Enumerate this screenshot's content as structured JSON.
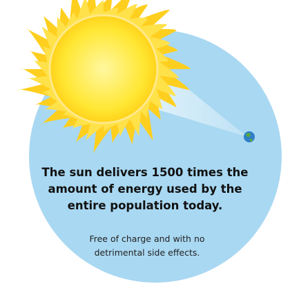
{
  "headline": {
    "lines": [
      "The sun delivers 1500 times the",
      "amount of energy used by the",
      "entire population today."
    ]
  },
  "subtext": {
    "lines": [
      "Free of charge and with no",
      "detrimental side effects."
    ]
  }
}
